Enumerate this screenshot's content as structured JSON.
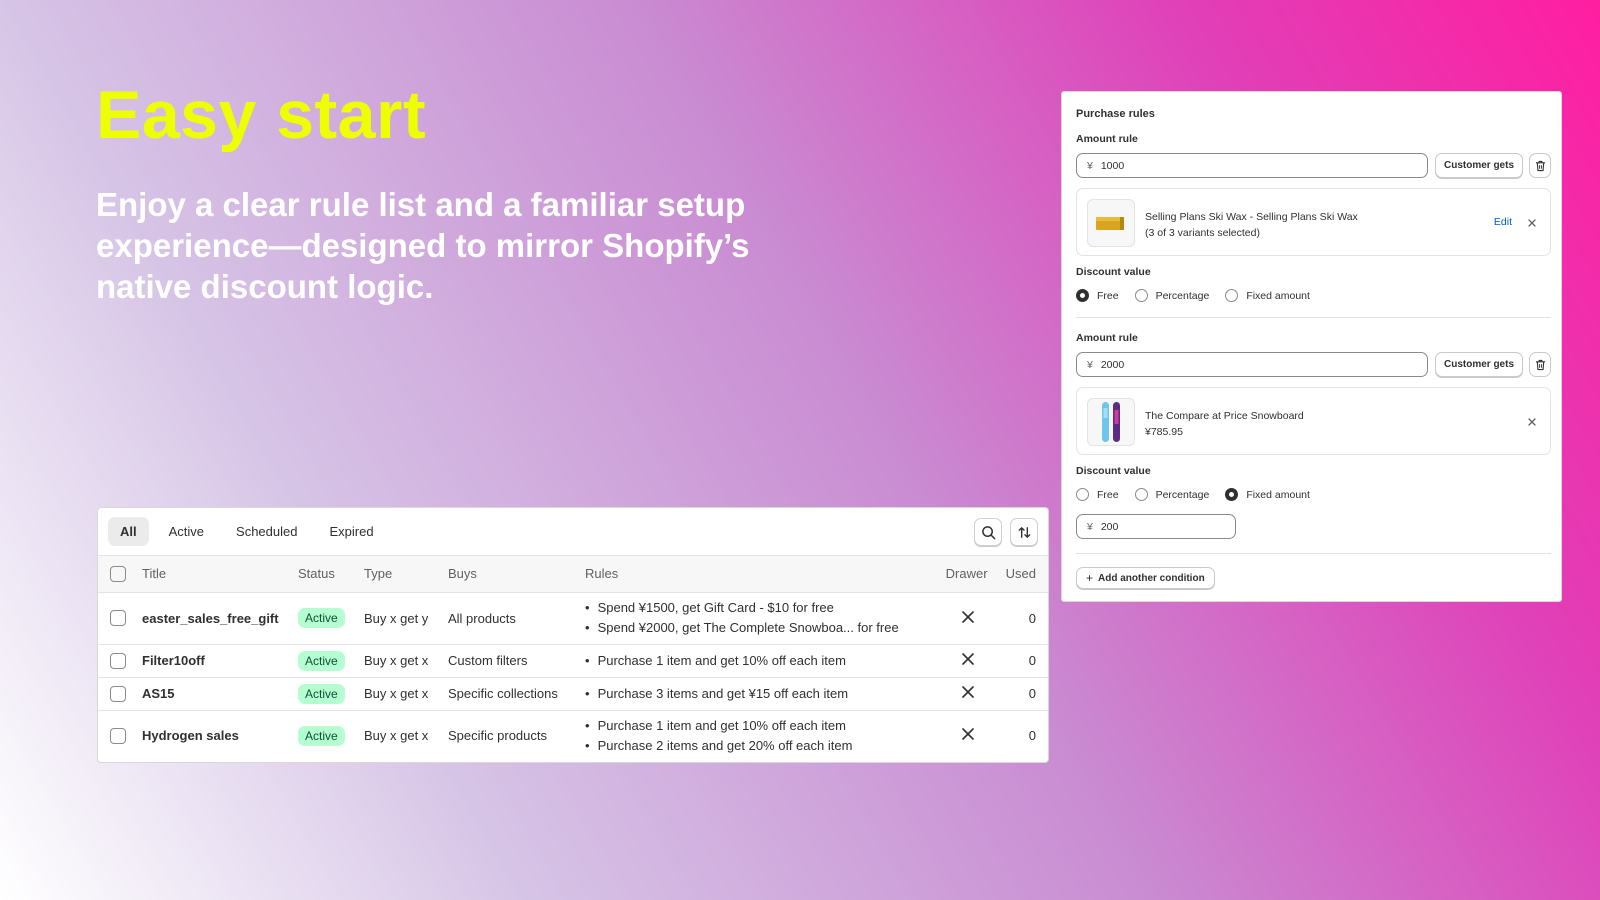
{
  "hero": {
    "title": "Easy start",
    "subtitle": "Enjoy a clear rule list and a familiar setup experience—designed to mirror Shopify’s native discount logic."
  },
  "rule_list": {
    "tabs": [
      "All",
      "Active",
      "Scheduled",
      "Expired"
    ],
    "selected_tab": "All",
    "tools": [
      "search-icon",
      "sort-icon"
    ],
    "columns": [
      "Title",
      "Status",
      "Type",
      "Buys",
      "Rules",
      "Drawer",
      "Used"
    ],
    "rows": [
      {
        "title": "easter_sales_free_gift",
        "status": "Active",
        "type": "Buy x get y",
        "buys": "All products",
        "rules": [
          "Spend ¥1500, get Gift Card - $10 for free",
          "Spend ¥2000, get The Complete Snowboa... for free"
        ],
        "used": "0"
      },
      {
        "title": "Filter10off",
        "status": "Active",
        "type": "Buy x get x",
        "buys": "Custom filters",
        "rules": [
          "Purchase 1 item and get 10% off each item"
        ],
        "used": "0"
      },
      {
        "title": "AS15",
        "status": "Active",
        "type": "Buy x get x",
        "buys": "Specific collections",
        "rules": [
          "Purchase 3 items and get ¥15 off each item"
        ],
        "used": "0"
      },
      {
        "title": "Hydrogen sales",
        "status": "Active",
        "type": "Buy x get x",
        "buys": "Specific products",
        "rules": [
          "Purchase 1 item and get 10% off each item",
          "Purchase 2 items and get 20% off each item"
        ],
        "used": "0"
      }
    ],
    "colors": {
      "active_badge_bg": "#b4fed2",
      "active_badge_text": "#0c5132"
    }
  },
  "purchase_rules": {
    "title": "Purchase rules",
    "currency": "¥",
    "rules": [
      {
        "label": "Amount rule",
        "amount": "1000",
        "customer_gets_label": "Customer gets",
        "product_line1": "Selling Plans Ski Wax - Selling Plans Ski Wax",
        "product_line2": "(3 of 3 variants selected)",
        "edit_label": "Edit",
        "discount_label": "Discount value",
        "options": [
          "Free",
          "Percentage",
          "Fixed amount"
        ],
        "selected": "Free"
      },
      {
        "label": "Amount rule",
        "amount": "2000",
        "customer_gets_label": "Customer gets",
        "product_line1": "The Compare at Price Snowboard",
        "product_line2": "¥785.95",
        "discount_label": "Discount value",
        "options": [
          "Free",
          "Percentage",
          "Fixed amount"
        ],
        "selected": "Fixed amount",
        "fixed_value": "200"
      }
    ],
    "add_condition_label": "Add another condition"
  }
}
